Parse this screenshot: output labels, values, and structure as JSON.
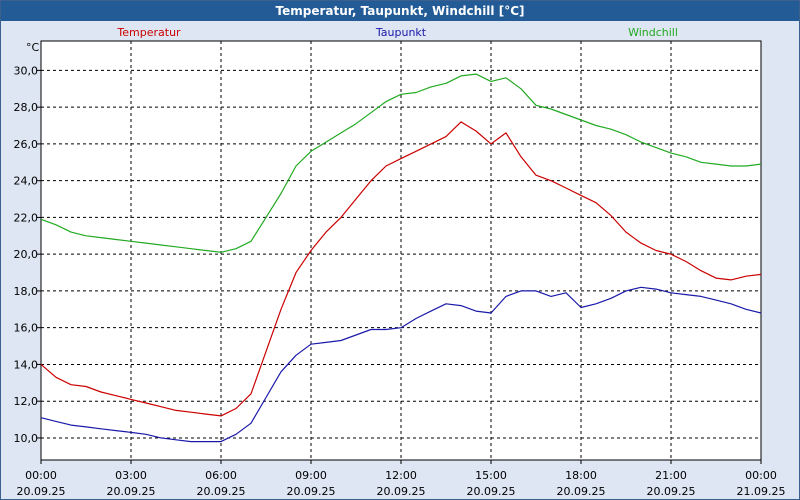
{
  "window": {
    "title": "Temperatur, Taupunkt, Windchill [°C]"
  },
  "chart_data": {
    "type": "line",
    "title": "Temperatur, Taupunkt, Windchill [°C]",
    "ylabel": "°C",
    "ylim": [
      8.8,
      31.6
    ],
    "yticks": [
      "10,0",
      "12,0",
      "14,0",
      "16,0",
      "18,0",
      "20,0",
      "22,0",
      "24,0",
      "26,0",
      "28,0",
      "30,0"
    ],
    "xticks": [
      {
        "time": "00:00",
        "date": "20.09.25"
      },
      {
        "time": "03:00",
        "date": "20.09.25"
      },
      {
        "time": "06:00",
        "date": "20.09.25"
      },
      {
        "time": "09:00",
        "date": "20.09.25"
      },
      {
        "time": "12:00",
        "date": "20.09.25"
      },
      {
        "time": "15:00",
        "date": "20.09.25"
      },
      {
        "time": "18:00",
        "date": "20.09.25"
      },
      {
        "time": "21:00",
        "date": "20.09.25"
      },
      {
        "time": "00:00",
        "date": "21.09.25"
      }
    ],
    "x_hours": [
      0,
      0.5,
      1,
      1.5,
      2,
      2.5,
      3,
      3.5,
      4,
      4.5,
      5,
      5.5,
      6,
      6.5,
      7,
      7.5,
      8,
      8.5,
      9,
      9.5,
      10,
      10.5,
      11,
      11.5,
      12,
      12.5,
      13,
      13.5,
      14,
      14.5,
      15,
      15.5,
      16,
      16.5,
      17,
      17.5,
      18,
      18.5,
      19,
      19.5,
      20,
      20.5,
      21,
      21.5,
      22,
      22.5,
      23,
      23.5,
      24
    ],
    "grid": true,
    "legend_position": "top",
    "series": [
      {
        "name": "Temperatur",
        "color": "#cc0000",
        "values": [
          14.0,
          13.3,
          12.9,
          12.8,
          12.5,
          12.3,
          12.1,
          11.9,
          11.7,
          11.5,
          11.4,
          11.3,
          11.2,
          11.6,
          12.4,
          14.7,
          17.0,
          19.0,
          20.2,
          21.2,
          22.0,
          23.0,
          24.0,
          24.8,
          25.2,
          25.6,
          26.0,
          26.4,
          27.2,
          26.7,
          26.0,
          26.6,
          25.3,
          24.3,
          24.0,
          23.6,
          23.2,
          22.8,
          22.1,
          21.2,
          20.6,
          20.2,
          20.0,
          19.6,
          19.1,
          18.7,
          18.6,
          18.8,
          18.9
        ]
      },
      {
        "name": "Taupunkt",
        "color": "#1a1aaa",
        "values": [
          11.1,
          10.9,
          10.7,
          10.6,
          10.5,
          10.4,
          10.3,
          10.2,
          10.0,
          9.9,
          9.8,
          9.8,
          9.8,
          10.2,
          10.8,
          12.2,
          13.6,
          14.5,
          15.1,
          15.2,
          15.3,
          15.6,
          15.9,
          15.9,
          16.0,
          16.5,
          16.9,
          17.3,
          17.2,
          16.9,
          16.8,
          17.7,
          18.0,
          18.0,
          17.7,
          17.9,
          17.1,
          17.3,
          17.6,
          18.0,
          18.2,
          18.1,
          17.9,
          17.8,
          17.7,
          17.5,
          17.3,
          17.0,
          16.8
        ]
      },
      {
        "name": "Windchill",
        "color": "#22aa22",
        "values": [
          21.9,
          21.6,
          21.2,
          21.0,
          20.9,
          20.8,
          20.7,
          20.6,
          20.5,
          20.4,
          20.3,
          20.2,
          20.1,
          20.3,
          20.7,
          22.0,
          23.3,
          24.8,
          25.6,
          26.1,
          26.6,
          27.1,
          27.7,
          28.3,
          28.7,
          28.8,
          29.1,
          29.3,
          29.7,
          29.8,
          29.4,
          29.6,
          29.0,
          28.1,
          27.9,
          27.6,
          27.3,
          27.0,
          26.8,
          26.5,
          26.1,
          25.8,
          25.5,
          25.3,
          25.0,
          24.9,
          24.8,
          24.8,
          24.9
        ]
      }
    ]
  }
}
